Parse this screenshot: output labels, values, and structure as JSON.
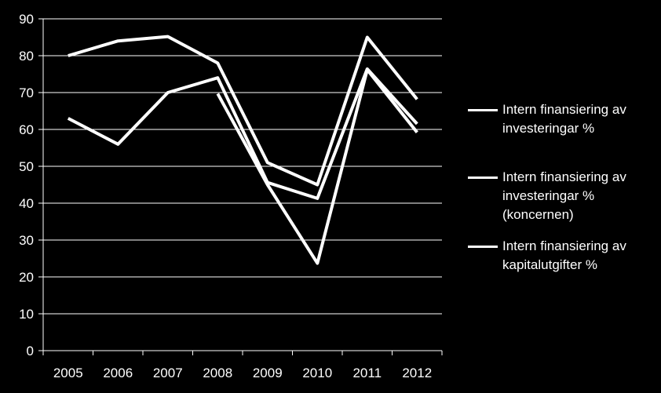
{
  "chart_data": {
    "type": "line",
    "categories": [
      "2005",
      "2006",
      "2007",
      "2008",
      "2009",
      "2010",
      "2011",
      "2012"
    ],
    "ylim": [
      0,
      90
    ],
    "yticks": [
      "0",
      "10",
      "20",
      "30",
      "40",
      "50",
      "60",
      "70",
      "80",
      "90"
    ],
    "grid": true,
    "legend_position": "right",
    "series": [
      {
        "name": "Intern finansiering av investeringar %",
        "values": [
          80,
          84,
          85.2,
          78,
          51,
          45,
          85,
          68.2
        ]
      },
      {
        "name": "Intern finansiering av investeringar % (koncernen)",
        "values": [
          null,
          null,
          null,
          69.7,
          45,
          23.7,
          76.2,
          59.2
        ]
      },
      {
        "name": "Intern finansiering av kapitalutgifter %",
        "values": [
          63,
          56,
          70,
          74,
          45.6,
          41.3,
          76.4,
          61.5
        ]
      }
    ],
    "colors": {
      "background": "#000000",
      "line": "#ffffff",
      "grid": "#ffffff"
    }
  },
  "legend": [
    {
      "label_line1": "Intern finansiering av",
      "label_line2": "investeringar %",
      "label_line3": ""
    },
    {
      "label_line1": "Intern finansiering av",
      "label_line2": "investeringar %",
      "label_line3": "(koncernen)"
    },
    {
      "label_line1": "Intern finansiering av",
      "label_line2": "kapitalutgifter %",
      "label_line3": ""
    }
  ]
}
